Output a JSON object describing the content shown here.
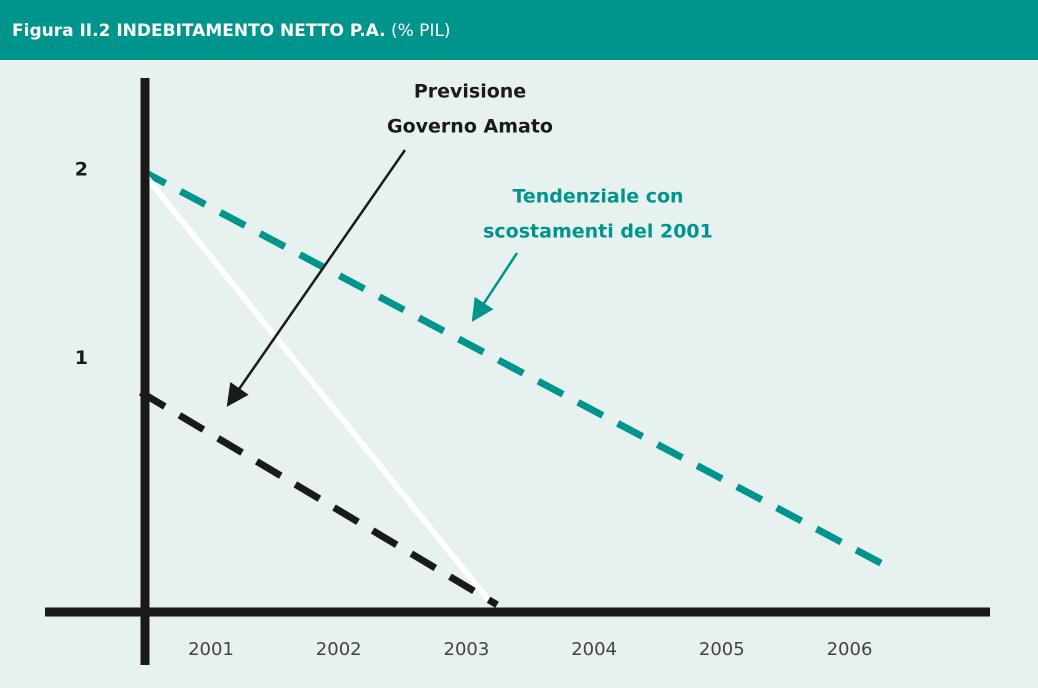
{
  "chart_data": {
    "type": "line",
    "title": "Figura II.2 INDEBITAMENTO NETTO P.A.",
    "subtitle": "(% PIL)",
    "xlim": [
      1999.7,
      2007.1
    ],
    "xticks": [
      2001,
      2002,
      2003,
      2004,
      2005,
      2006
    ],
    "ylim": [
      -0.63,
      2.49
    ],
    "yticks": [
      1,
      2
    ],
    "series": [
      {
        "color": "#00958c",
        "dash": true,
        "x": [
          2000.45,
          2006.25
        ],
        "values": [
          2.0,
          -0.09
        ]
      },
      {
        "color": "#ffffff",
        "dash": false,
        "x": [
          2000.45,
          2003.18
        ],
        "values": [
          2.0,
          -0.29
        ]
      },
      {
        "color": "#1a1a1a",
        "dash": true,
        "x": [
          2000.45,
          2003.24
        ],
        "values": [
          0.82,
          -0.31
        ]
      }
    ],
    "annotations": [
      {
        "lines": [
          "Previsione",
          "Governo Amato"
        ],
        "color": "#1a1a1a"
      },
      {
        "lines": [
          "Tendenziale con",
          "scostamenti del 2001"
        ],
        "color": "#00958c"
      }
    ]
  }
}
